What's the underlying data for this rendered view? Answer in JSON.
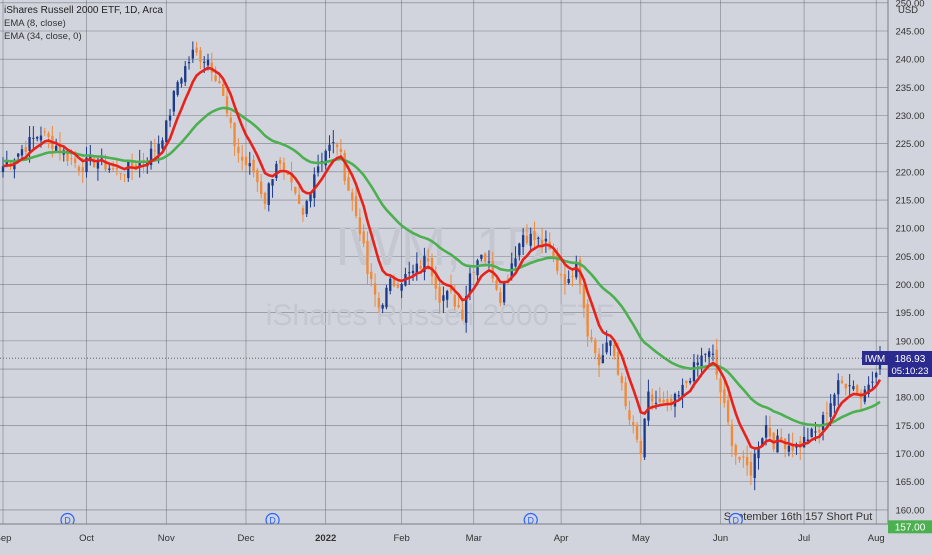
{
  "header": {
    "title": "iShares Russell 2000 ETF, 1D, Arca",
    "indicators": [
      "EMA (8, close)",
      "EMA (34, close, 0)"
    ]
  },
  "watermark": {
    "symbol": "IWM, 1D",
    "name": "iShares Russell 2000 ETF"
  },
  "colors": {
    "background": "#d1d4dc",
    "grid": "#5a5d66",
    "up": "#1b3a8c",
    "down": "#f08a3a",
    "ema_fast": "#e8221b",
    "ema_slow": "#4caf50",
    "ticker_tag": "#2b2b8f",
    "put_line": "#4caf50"
  },
  "price_tag": {
    "symbol": "IWM",
    "price": "186.93",
    "countdown": "05:10:23"
  },
  "annotation": {
    "label": "September 16th 157 Short Put",
    "level": "157.00"
  },
  "dividend_marker": "D",
  "chart_data": {
    "type": "candlestick",
    "title": "iShares Russell 2000 ETF, 1D, Arca",
    "yaxis_unit": "USD",
    "ylim": [
      157.5,
      250.5
    ],
    "yticks": [
      160,
      165,
      170,
      175,
      180,
      185,
      190,
      195,
      200,
      205,
      210,
      215,
      220,
      225,
      230,
      235,
      240,
      245,
      250
    ],
    "ytick_labels": [
      "160.00",
      "165.00",
      "170.00",
      "175.00",
      "180.00",
      "185.00",
      "190.00",
      "195.00",
      "200.00",
      "205.00",
      "210.00",
      "215.00",
      "220.00",
      "225.00",
      "230.00",
      "235.00",
      "240.00",
      "245.00",
      "250.00"
    ],
    "xtick_labels": [
      "Sep",
      "Oct",
      "Nov",
      "Dec",
      "2022",
      "Feb",
      "Mar",
      "Apr",
      "May",
      "Jun",
      "Jul",
      "Aug"
    ],
    "xticks_trading_day": [
      0,
      22,
      43,
      64,
      85,
      105,
      124,
      147,
      168,
      189,
      211,
      230
    ],
    "n_days": 232,
    "dividend_days": [
      17,
      71,
      139,
      193
    ],
    "last_price": 186.93,
    "short_put_strike": 157.0,
    "close_anchors": [
      [
        0,
        221
      ],
      [
        5,
        224
      ],
      [
        10,
        227
      ],
      [
        15,
        224
      ],
      [
        20,
        221
      ],
      [
        25,
        222
      ],
      [
        30,
        220
      ],
      [
        35,
        221
      ],
      [
        40,
        224
      ],
      [
        43,
        228
      ],
      [
        46,
        236
      ],
      [
        50,
        241
      ],
      [
        54,
        240
      ],
      [
        57,
        236
      ],
      [
        59,
        230
      ],
      [
        61,
        225
      ],
      [
        63,
        222
      ],
      [
        66,
        220
      ],
      [
        69,
        215
      ],
      [
        72,
        222
      ],
      [
        76,
        217
      ],
      [
        79,
        212
      ],
      [
        82,
        220
      ],
      [
        85,
        224
      ],
      [
        88,
        225
      ],
      [
        91,
        217
      ],
      [
        94,
        210
      ],
      [
        96,
        202
      ],
      [
        99,
        196
      ],
      [
        102,
        200
      ],
      [
        105,
        201
      ],
      [
        108,
        202
      ],
      [
        112,
        205
      ],
      [
        115,
        198
      ],
      [
        118,
        198
      ],
      [
        121,
        195
      ],
      [
        123,
        202
      ],
      [
        126,
        206
      ],
      [
        129,
        202
      ],
      [
        131,
        198
      ],
      [
        134,
        204
      ],
      [
        137,
        209
      ],
      [
        140,
        208
      ],
      [
        143,
        207
      ],
      [
        146,
        203
      ],
      [
        149,
        200
      ],
      [
        151,
        205
      ],
      [
        154,
        192
      ],
      [
        157,
        186
      ],
      [
        160,
        190
      ],
      [
        162,
        185
      ],
      [
        164,
        178
      ],
      [
        166,
        174
      ],
      [
        168,
        170
      ],
      [
        170,
        180
      ],
      [
        172,
        179
      ],
      [
        175,
        178
      ],
      [
        178,
        180
      ],
      [
        181,
        184
      ],
      [
        183,
        186
      ],
      [
        185,
        188
      ],
      [
        187,
        187
      ],
      [
        189,
        181
      ],
      [
        191,
        175
      ],
      [
        193,
        170
      ],
      [
        195,
        168
      ],
      [
        197,
        167
      ],
      [
        199,
        172
      ],
      [
        201,
        175
      ],
      [
        203,
        172
      ],
      [
        206,
        172
      ],
      [
        209,
        171
      ],
      [
        212,
        173
      ],
      [
        215,
        174
      ],
      [
        217,
        178
      ],
      [
        220,
        182
      ],
      [
        223,
        183
      ],
      [
        226,
        180
      ],
      [
        229,
        184
      ],
      [
        231,
        186.93
      ]
    ]
  }
}
